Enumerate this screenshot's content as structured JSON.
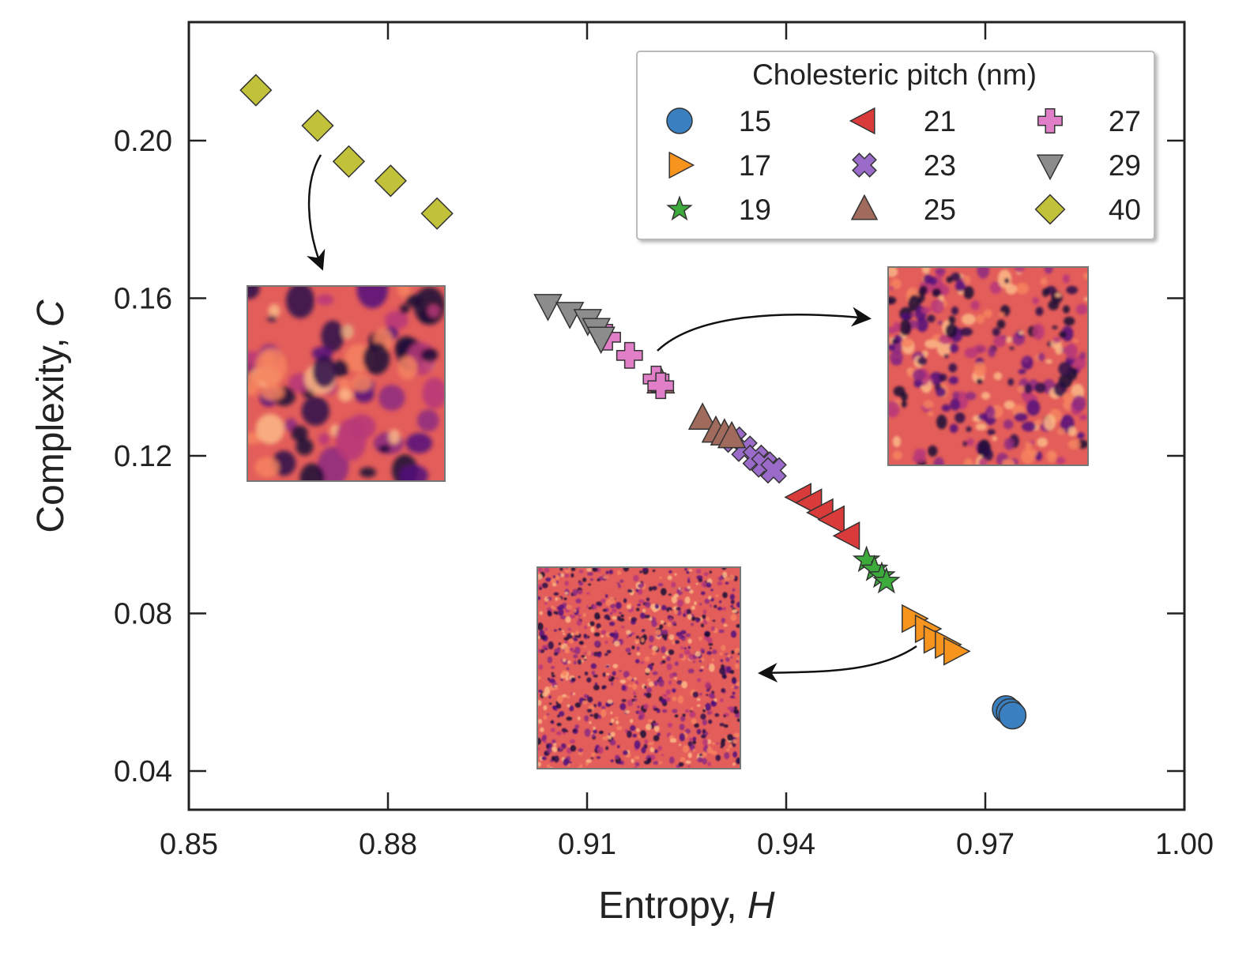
{
  "chart_data": {
    "type": "scatter",
    "xlabel": "Entropy, ",
    "xlabel_var": "H",
    "ylabel": "Complexity, ",
    "ylabel_var": "C",
    "xlim": [
      0.85,
      1.0
    ],
    "ylim": [
      0.03,
      0.23
    ],
    "xticks": [
      0.85,
      0.88,
      0.91,
      0.94,
      0.97,
      1.0
    ],
    "xtick_labels": [
      "0.85",
      "0.88",
      "0.91",
      "0.94",
      "0.97",
      "1.00"
    ],
    "yticks": [
      0.04,
      0.08,
      0.12,
      0.16,
      0.2
    ],
    "ytick_labels": [
      "0.04",
      "0.08",
      "0.12",
      "0.16",
      "0.20"
    ],
    "grid": false,
    "legend": {
      "title": "Cholesteric pitch (nm)",
      "placement": "top-right",
      "columns": 3
    },
    "series": [
      {
        "name": "15",
        "marker": "circle",
        "color": "#3a7fc0",
        "points": [
          [
            0.9731,
            0.0557
          ],
          [
            0.9737,
            0.0549
          ],
          [
            0.9741,
            0.0541
          ]
        ]
      },
      {
        "name": "17",
        "marker": "triangle-right",
        "color": "#f7941d",
        "points": [
          [
            0.9591,
            0.0787
          ],
          [
            0.9611,
            0.0761
          ],
          [
            0.9624,
            0.0734
          ],
          [
            0.9641,
            0.0721
          ],
          [
            0.9654,
            0.0704
          ]
        ]
      },
      {
        "name": "19",
        "marker": "star",
        "color": "#3cab3c",
        "points": [
          [
            0.9521,
            0.0935
          ],
          [
            0.9533,
            0.0912
          ],
          [
            0.9544,
            0.0895
          ],
          [
            0.9551,
            0.0881
          ]
        ]
      },
      {
        "name": "21",
        "marker": "triangle-left",
        "color": "#d93a3a",
        "points": [
          [
            0.9421,
            0.1095
          ],
          [
            0.9437,
            0.1081
          ],
          [
            0.9454,
            0.1056
          ],
          [
            0.9471,
            0.1038
          ],
          [
            0.9494,
            0.0997
          ]
        ]
      },
      {
        "name": "23",
        "marker": "x",
        "color": "#9a6bc8",
        "points": [
          [
            0.9321,
            0.1241
          ],
          [
            0.9337,
            0.1218
          ],
          [
            0.9354,
            0.1195
          ],
          [
            0.9367,
            0.1178
          ],
          [
            0.9381,
            0.1163
          ]
        ]
      },
      {
        "name": "25",
        "marker": "triangle-up",
        "color": "#a06a5c",
        "points": [
          [
            0.9211,
            0.1387
          ],
          [
            0.9274,
            0.1295
          ],
          [
            0.9294,
            0.1262
          ],
          [
            0.9307,
            0.1255
          ],
          [
            0.9318,
            0.1248
          ]
        ]
      },
      {
        "name": "27",
        "marker": "plus",
        "color": "#e07fc8",
        "points": [
          [
            0.9131,
            0.1501
          ],
          [
            0.9164,
            0.1455
          ],
          [
            0.9204,
            0.1395
          ],
          [
            0.9211,
            0.1378
          ]
        ]
      },
      {
        "name": "29",
        "marker": "triangle-down",
        "color": "#8c8c8c",
        "points": [
          [
            0.9041,
            0.1582
          ],
          [
            0.9074,
            0.1562
          ],
          [
            0.9101,
            0.1544
          ],
          [
            0.9114,
            0.1521
          ],
          [
            0.9121,
            0.1499
          ]
        ]
      },
      {
        "name": "40",
        "marker": "diamond",
        "color": "#c2c23a",
        "points": [
          [
            0.8601,
            0.2128
          ],
          [
            0.8694,
            0.2038
          ],
          [
            0.8741,
            0.1947
          ],
          [
            0.8804,
            0.1898
          ],
          [
            0.8874,
            0.1815
          ]
        ]
      }
    ],
    "insets": [
      {
        "id": "inset-coarse",
        "palette": "magma",
        "feature_scale": "coarse"
      },
      {
        "id": "inset-medium",
        "palette": "magma",
        "feature_scale": "medium"
      },
      {
        "id": "inset-fine",
        "palette": "magma",
        "feature_scale": "fine"
      }
    ]
  }
}
